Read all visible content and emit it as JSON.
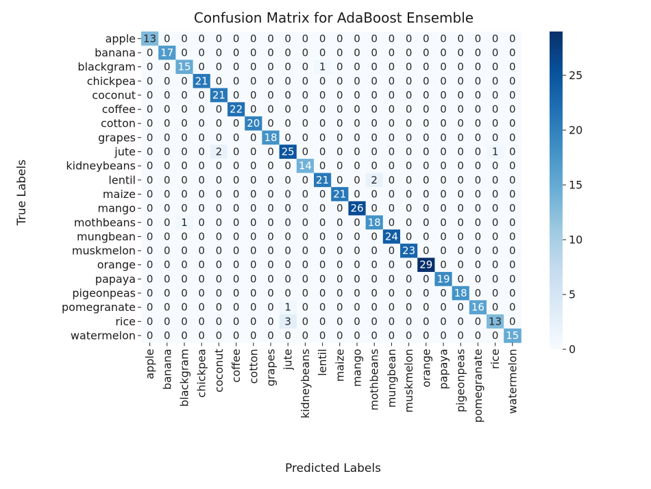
{
  "chart_data": {
    "type": "heatmap",
    "title": "Confusion Matrix for AdaBoost Ensemble",
    "xlabel": "Predicted Labels",
    "ylabel": "True Labels",
    "x_categories": [
      "apple",
      "banana",
      "blackgram",
      "chickpea",
      "coconut",
      "coffee",
      "cotton",
      "grapes",
      "jute",
      "kidneybeans",
      "lentil",
      "maize",
      "mango",
      "mothbeans",
      "mungbean",
      "muskmelon",
      "orange",
      "papaya",
      "pigeonpeas",
      "pomegranate",
      "rice",
      "watermelon"
    ],
    "y_categories": [
      "apple",
      "banana",
      "blackgram",
      "chickpea",
      "coconut",
      "coffee",
      "cotton",
      "grapes",
      "jute",
      "kidneybeans",
      "lentil",
      "maize",
      "mango",
      "mothbeans",
      "mungbean",
      "muskmelon",
      "orange",
      "papaya",
      "pigeonpeas",
      "pomegranate",
      "rice",
      "watermelon"
    ],
    "matrix": [
      [
        13,
        0,
        0,
        0,
        0,
        0,
        0,
        0,
        0,
        0,
        0,
        0,
        0,
        0,
        0,
        0,
        0,
        0,
        0,
        0,
        0,
        0
      ],
      [
        0,
        17,
        0,
        0,
        0,
        0,
        0,
        0,
        0,
        0,
        0,
        0,
        0,
        0,
        0,
        0,
        0,
        0,
        0,
        0,
        0,
        0
      ],
      [
        0,
        0,
        15,
        0,
        0,
        0,
        0,
        0,
        0,
        0,
        1,
        0,
        0,
        0,
        0,
        0,
        0,
        0,
        0,
        0,
        0,
        0
      ],
      [
        0,
        0,
        0,
        21,
        0,
        0,
        0,
        0,
        0,
        0,
        0,
        0,
        0,
        0,
        0,
        0,
        0,
        0,
        0,
        0,
        0,
        0
      ],
      [
        0,
        0,
        0,
        0,
        21,
        0,
        0,
        0,
        0,
        0,
        0,
        0,
        0,
        0,
        0,
        0,
        0,
        0,
        0,
        0,
        0,
        0
      ],
      [
        0,
        0,
        0,
        0,
        0,
        22,
        0,
        0,
        0,
        0,
        0,
        0,
        0,
        0,
        0,
        0,
        0,
        0,
        0,
        0,
        0,
        0
      ],
      [
        0,
        0,
        0,
        0,
        0,
        0,
        20,
        0,
        0,
        0,
        0,
        0,
        0,
        0,
        0,
        0,
        0,
        0,
        0,
        0,
        0,
        0
      ],
      [
        0,
        0,
        0,
        0,
        0,
        0,
        0,
        18,
        0,
        0,
        0,
        0,
        0,
        0,
        0,
        0,
        0,
        0,
        0,
        0,
        0,
        0
      ],
      [
        0,
        0,
        0,
        0,
        2,
        0,
        0,
        0,
        25,
        0,
        0,
        0,
        0,
        0,
        0,
        0,
        0,
        0,
        0,
        0,
        1,
        0
      ],
      [
        0,
        0,
        0,
        0,
        0,
        0,
        0,
        0,
        0,
        14,
        0,
        0,
        0,
        0,
        0,
        0,
        0,
        0,
        0,
        0,
        0,
        0
      ],
      [
        0,
        0,
        0,
        0,
        0,
        0,
        0,
        0,
        0,
        0,
        21,
        0,
        0,
        2,
        0,
        0,
        0,
        0,
        0,
        0,
        0,
        0
      ],
      [
        0,
        0,
        0,
        0,
        0,
        0,
        0,
        0,
        0,
        0,
        0,
        21,
        0,
        0,
        0,
        0,
        0,
        0,
        0,
        0,
        0,
        0
      ],
      [
        0,
        0,
        0,
        0,
        0,
        0,
        0,
        0,
        0,
        0,
        0,
        0,
        26,
        0,
        0,
        0,
        0,
        0,
        0,
        0,
        0,
        0
      ],
      [
        0,
        0,
        1,
        0,
        0,
        0,
        0,
        0,
        0,
        0,
        0,
        0,
        0,
        18,
        0,
        0,
        0,
        0,
        0,
        0,
        0,
        0
      ],
      [
        0,
        0,
        0,
        0,
        0,
        0,
        0,
        0,
        0,
        0,
        0,
        0,
        0,
        0,
        24,
        0,
        0,
        0,
        0,
        0,
        0,
        0
      ],
      [
        0,
        0,
        0,
        0,
        0,
        0,
        0,
        0,
        0,
        0,
        0,
        0,
        0,
        0,
        0,
        23,
        0,
        0,
        0,
        0,
        0,
        0
      ],
      [
        0,
        0,
        0,
        0,
        0,
        0,
        0,
        0,
        0,
        0,
        0,
        0,
        0,
        0,
        0,
        0,
        29,
        0,
        0,
        0,
        0,
        0
      ],
      [
        0,
        0,
        0,
        0,
        0,
        0,
        0,
        0,
        0,
        0,
        0,
        0,
        0,
        0,
        0,
        0,
        0,
        19,
        0,
        0,
        0,
        0
      ],
      [
        0,
        0,
        0,
        0,
        0,
        0,
        0,
        0,
        0,
        0,
        0,
        0,
        0,
        0,
        0,
        0,
        0,
        0,
        18,
        0,
        0,
        0
      ],
      [
        0,
        0,
        0,
        0,
        0,
        0,
        0,
        0,
        1,
        0,
        0,
        0,
        0,
        0,
        0,
        0,
        0,
        0,
        0,
        16,
        0,
        0
      ],
      [
        0,
        0,
        0,
        0,
        0,
        0,
        0,
        0,
        3,
        0,
        0,
        0,
        0,
        0,
        0,
        0,
        0,
        0,
        0,
        0,
        13,
        0
      ],
      [
        0,
        0,
        0,
        0,
        0,
        0,
        0,
        0,
        0,
        0,
        0,
        0,
        0,
        0,
        0,
        0,
        0,
        0,
        0,
        0,
        0,
        15
      ]
    ],
    "colormap": "Blues",
    "vmin": 0,
    "vmax": 29,
    "colorbar_ticks": [
      0,
      5,
      10,
      15,
      20,
      25
    ],
    "annotate": true,
    "grid": false
  }
}
